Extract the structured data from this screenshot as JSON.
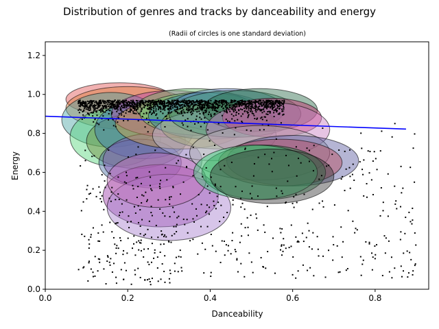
{
  "chart_data": {
    "type": "scatter",
    "title": "Distribution of genres and tracks by danceability and energy",
    "subtitle": "(Radii of circles is one standard deviation)",
    "xlabel": "Danceability",
    "ylabel": "Energy",
    "xlim": [
      0.0,
      0.93
    ],
    "ylim": [
      0.0,
      1.27
    ],
    "xticks": [
      "0.0",
      "0.2",
      "0.4",
      "0.6",
      "0.8"
    ],
    "yticks": [
      "0.0",
      "0.2",
      "0.4",
      "0.6",
      "0.8",
      "1.0",
      "1.2"
    ],
    "grid": false,
    "trend_line": {
      "x": [
        0.0,
        0.875
      ],
      "y": [
        0.888,
        0.822
      ],
      "color": "#0000ff"
    },
    "genre_ellipses": [
      {
        "cx": 0.18,
        "cy": 0.975,
        "rx": 0.13,
        "ry": 0.085,
        "color": "#e05252"
      },
      {
        "cx": 0.2,
        "cy": 0.93,
        "rx": 0.15,
        "ry": 0.11,
        "color": "#d97a3a"
      },
      {
        "cx": 0.16,
        "cy": 0.87,
        "rx": 0.12,
        "ry": 0.14,
        "color": "#4aa3a3"
      },
      {
        "cx": 0.17,
        "cy": 0.78,
        "rx": 0.11,
        "ry": 0.15,
        "color": "#55d47a"
      },
      {
        "cx": 0.22,
        "cy": 0.76,
        "rx": 0.12,
        "ry": 0.14,
        "color": "#6a8a3a"
      },
      {
        "cx": 0.24,
        "cy": 0.82,
        "rx": 0.12,
        "ry": 0.15,
        "color": "#3a7ab8"
      },
      {
        "cx": 0.23,
        "cy": 0.65,
        "rx": 0.1,
        "ry": 0.12,
        "color": "#4a6fa5"
      },
      {
        "cx": 0.26,
        "cy": 0.66,
        "rx": 0.12,
        "ry": 0.14,
        "color": "#8a5ab8"
      },
      {
        "cx": 0.28,
        "cy": 0.48,
        "rx": 0.14,
        "ry": 0.16,
        "color": "#9b3aa8"
      },
      {
        "cx": 0.3,
        "cy": 0.42,
        "rx": 0.15,
        "ry": 0.17,
        "color": "#a67fcf"
      },
      {
        "cx": 0.27,
        "cy": 0.56,
        "rx": 0.12,
        "ry": 0.14,
        "color": "#c070b8"
      },
      {
        "cx": 0.31,
        "cy": 0.9,
        "rx": 0.15,
        "ry": 0.12,
        "color": "#b84ab0"
      },
      {
        "cx": 0.33,
        "cy": 0.85,
        "rx": 0.16,
        "ry": 0.13,
        "color": "#d4a24a"
      },
      {
        "cx": 0.36,
        "cy": 0.93,
        "rx": 0.14,
        "ry": 0.1,
        "color": "#66b866"
      },
      {
        "cx": 0.38,
        "cy": 0.9,
        "rx": 0.15,
        "ry": 0.11,
        "color": "#7ad47a"
      },
      {
        "cx": 0.4,
        "cy": 0.89,
        "rx": 0.15,
        "ry": 0.12,
        "color": "#2a7fa0"
      },
      {
        "cx": 0.44,
        "cy": 0.92,
        "rx": 0.14,
        "ry": 0.11,
        "color": "#5a7fc0"
      },
      {
        "cx": 0.42,
        "cy": 0.84,
        "rx": 0.14,
        "ry": 0.12,
        "color": "#8a9a2a"
      },
      {
        "cx": 0.41,
        "cy": 0.79,
        "rx": 0.15,
        "ry": 0.13,
        "color": "#b8b8d8"
      },
      {
        "cx": 0.46,
        "cy": 0.9,
        "rx": 0.16,
        "ry": 0.12,
        "color": "#4a9a7a"
      },
      {
        "cx": 0.52,
        "cy": 0.92,
        "rx": 0.14,
        "ry": 0.11,
        "color": "#2a6a4a"
      },
      {
        "cx": 0.55,
        "cy": 0.88,
        "rx": 0.12,
        "ry": 0.1,
        "color": "#c02a6a"
      },
      {
        "cx": 0.54,
        "cy": 0.82,
        "rx": 0.15,
        "ry": 0.14,
        "color": "#c77dc0"
      },
      {
        "cx": 0.52,
        "cy": 0.7,
        "rx": 0.17,
        "ry": 0.14,
        "color": "#b0b0b0"
      },
      {
        "cx": 0.6,
        "cy": 0.66,
        "rx": 0.16,
        "ry": 0.13,
        "color": "#5a5aa0"
      },
      {
        "cx": 0.57,
        "cy": 0.65,
        "rx": 0.15,
        "ry": 0.12,
        "color": "#b84a5a"
      },
      {
        "cx": 0.53,
        "cy": 0.6,
        "rx": 0.15,
        "ry": 0.14,
        "color": "#2a8a4a"
      },
      {
        "cx": 0.51,
        "cy": 0.6,
        "rx": 0.15,
        "ry": 0.14,
        "color": "#3cd47a"
      },
      {
        "cx": 0.55,
        "cy": 0.58,
        "rx": 0.15,
        "ry": 0.14,
        "color": "#3a3a3a"
      }
    ],
    "tracks_count_shown": "~2000 points (one per track)"
  }
}
